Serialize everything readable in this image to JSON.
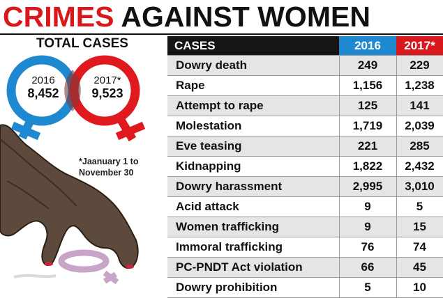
{
  "title": {
    "part1": "CRIMES",
    "part2": "AGAINST WOMEN"
  },
  "total_cases": {
    "label": "TOTAL CASES",
    "year_2016": "2016",
    "value_2016": "8,452",
    "year_2017": "2017*",
    "value_2017": "9,523"
  },
  "footnote": {
    "line1": "*Jaanuary 1 to",
    "line2": "November 30"
  },
  "colors": {
    "red": "#d7191e",
    "blue": "#1e88d0",
    "dark": "#151515",
    "shade": "#e5e5e5"
  },
  "chart_data": {
    "type": "table",
    "columns": [
      "CASES",
      "2016",
      "2017*"
    ],
    "rows": [
      {
        "name": "Dowry death",
        "v2016": "249",
        "v2017": "229"
      },
      {
        "name": "Rape",
        "v2016": "1,156",
        "v2017": "1,238"
      },
      {
        "name": "Attempt to rape",
        "v2016": "125",
        "v2017": "141"
      },
      {
        "name": "Molestation",
        "v2016": "1,719",
        "v2017": "2,039"
      },
      {
        "name": "Eve teasing",
        "v2016": "221",
        "v2017": "285"
      },
      {
        "name": "Kidnapping",
        "v2016": "1,822",
        "v2017": "2,432"
      },
      {
        "name": "Dowry harassment",
        "v2016": "2,995",
        "v2017": "3,010"
      },
      {
        "name": "Acid attack",
        "v2016": "9",
        "v2017": "5"
      },
      {
        "name": "Women trafficking",
        "v2016": "9",
        "v2017": "15"
      },
      {
        "name": "Immoral trafficking",
        "v2016": "76",
        "v2017": "74"
      },
      {
        "name": "PC-PNDT Act violation",
        "v2016": "66",
        "v2017": "45"
      },
      {
        "name": "Dowry prohibition",
        "v2016": "5",
        "v2017": "10"
      }
    ]
  }
}
